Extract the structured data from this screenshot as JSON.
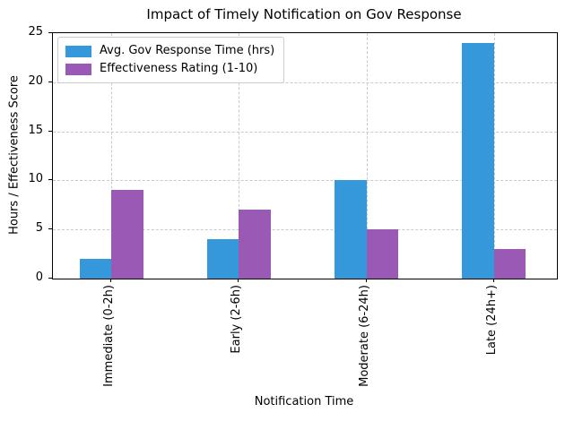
{
  "chart_data": {
    "type": "bar",
    "title": "Impact of Timely Notification on Gov Response",
    "xlabel": "Notification Time",
    "ylabel": "Hours / Effectiveness Score",
    "categories": [
      "Immediate (0-2h)",
      "Early (2-6h)",
      "Moderate (6-24h)",
      "Late (24h+)"
    ],
    "series": [
      {
        "name": "Avg. Gov Response Time (hrs)",
        "color": "#3498db",
        "values": [
          2,
          4,
          10,
          24
        ]
      },
      {
        "name": "Effectiveness Rating (1-10)",
        "color": "#9b59b6",
        "values": [
          9,
          7,
          5,
          3
        ]
      }
    ],
    "ylim": [
      0,
      25
    ],
    "yticks": [
      0,
      5,
      10,
      15,
      20,
      25
    ],
    "grid": true,
    "grid_style": "dashed",
    "legend_position": "upper left",
    "bar_width": 0.25,
    "xtick_rotation": 90
  }
}
